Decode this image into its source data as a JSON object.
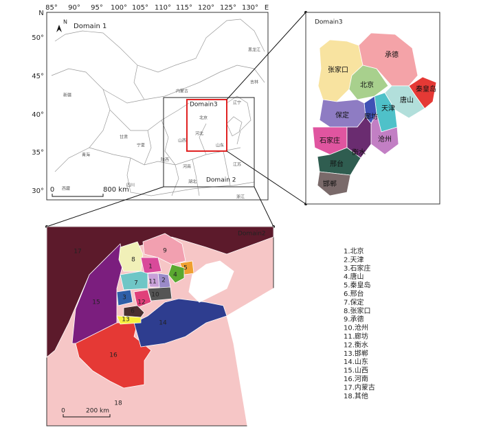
{
  "domain1": {
    "title": "Domain 1",
    "lon_ticks": [
      "85°",
      "90°",
      "95°",
      "100°",
      "105°",
      "110°",
      "115°",
      "120°",
      "125°",
      "130°"
    ],
    "east": "E",
    "north": "N",
    "lat_ticks": [
      "50°",
      "45°",
      "40°",
      "35°",
      "30°"
    ],
    "inner_box_label": "Domain3",
    "outer_box_label": "Domain 2",
    "scale": {
      "start": "0",
      "end": "800 km"
    },
    "north_arrow": "N",
    "province_labels": [
      "新疆",
      "西藏",
      "青海",
      "甘肃",
      "内蒙古",
      "黑龙江",
      "吉林",
      "辽宁",
      "北京",
      "河北",
      "山西",
      "山东",
      "河南",
      "陕西",
      "宁夏",
      "江苏",
      "湖北",
      "四川",
      "浙江"
    ]
  },
  "domain3": {
    "title": "Domain3",
    "cities": [
      "张家口",
      "承德",
      "北京",
      "秦皇岛",
      "唐山",
      "天津",
      "廊坊",
      "保定",
      "石家庄",
      "沧州",
      "衡水",
      "邢台",
      "邯郸"
    ]
  },
  "domain2": {
    "title": "Domain2",
    "regions": [
      "17",
      "15",
      "16",
      "14",
      "8",
      "9",
      "1",
      "5",
      "4",
      "2",
      "11",
      "7",
      "3",
      "10",
      "12",
      "6",
      "13",
      "18"
    ],
    "scale": {
      "start": "0",
      "end": "200 km"
    }
  },
  "legend": [
    "1.北京",
    "2.天津",
    "3.石家庄",
    "4.唐山",
    "5.秦皇岛",
    "6.邢台",
    "7.保定",
    "8.张家口",
    "9.承德",
    "10.沧州",
    "11.廊坊",
    "12.衡水",
    "13.邯郸",
    "14.山东",
    "15.山西",
    "16.河南",
    "17.内蒙古",
    "18.其他"
  ]
}
